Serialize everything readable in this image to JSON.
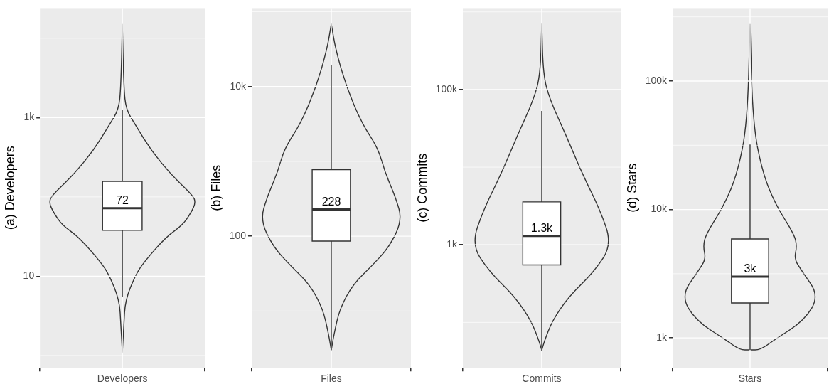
{
  "chart_data": [
    {
      "type": "box",
      "ylabel": "(a) Developers",
      "categories": [
        "Developers"
      ],
      "log": true,
      "grid": true,
      "ylim": [
        0.7,
        24000
      ],
      "yticks": [
        {
          "value": 1,
          "label": null
        },
        {
          "value": 10,
          "label": "10"
        },
        {
          "value": 100,
          "label": null
        },
        {
          "value": 1000,
          "label": "1k"
        },
        {
          "value": 10000,
          "label": null
        }
      ],
      "boxes": [
        {
          "low": 5.5,
          "q1": 38,
          "median": 72,
          "q3": 157,
          "high": 1260
        }
      ],
      "value_labels": [
        "72"
      ]
    },
    {
      "type": "box",
      "ylabel": "(b) Files",
      "categories": [
        "Files"
      ],
      "log": true,
      "grid": true,
      "ylim": [
        1.74,
        112000
      ],
      "yticks": [
        {
          "value": 10,
          "label": null
        },
        {
          "value": 100,
          "label": "100"
        },
        {
          "value": 1000,
          "label": null
        },
        {
          "value": 10000,
          "label": "10k"
        },
        {
          "value": 100000,
          "label": null
        }
      ],
      "boxes": [
        {
          "low": 3,
          "q1": 86,
          "median": 228,
          "q3": 776,
          "high": 19400
        }
      ],
      "value_labels": [
        "228"
      ]
    },
    {
      "type": "box",
      "ylabel": "(c) Commits",
      "categories": [
        "Commits"
      ],
      "log": true,
      "grid": true,
      "ylim": [
        26,
        1120000
      ],
      "yticks": [
        {
          "value": 100,
          "label": null
        },
        {
          "value": 1000,
          "label": "1k"
        },
        {
          "value": 10000,
          "label": null
        },
        {
          "value": 100000,
          "label": "100k"
        },
        {
          "value": 1000000,
          "label": null
        }
      ],
      "boxes": [
        {
          "low": 43,
          "q1": 550,
          "median": 1300,
          "q3": 3570,
          "high": 53000
        }
      ],
      "value_labels": [
        "1.3k"
      ]
    },
    {
      "type": "box",
      "ylabel": "(d) Stars",
      "categories": [
        "Stars"
      ],
      "log": true,
      "grid": true,
      "ylim": [
        585,
        370000
      ],
      "yticks": [
        {
          "value": 1000,
          "label": "1k"
        },
        {
          "value": 3162,
          "label": null
        },
        {
          "value": 10000,
          "label": "10k"
        },
        {
          "value": 31623,
          "label": null
        },
        {
          "value": 100000,
          "label": "100k"
        },
        {
          "value": 316228,
          "label": null
        }
      ],
      "boxes": [
        {
          "low": 807,
          "q1": 1870,
          "median": 3000,
          "q3": 5900,
          "high": 32000
        }
      ],
      "value_labels": [
        "3k"
      ]
    }
  ]
}
